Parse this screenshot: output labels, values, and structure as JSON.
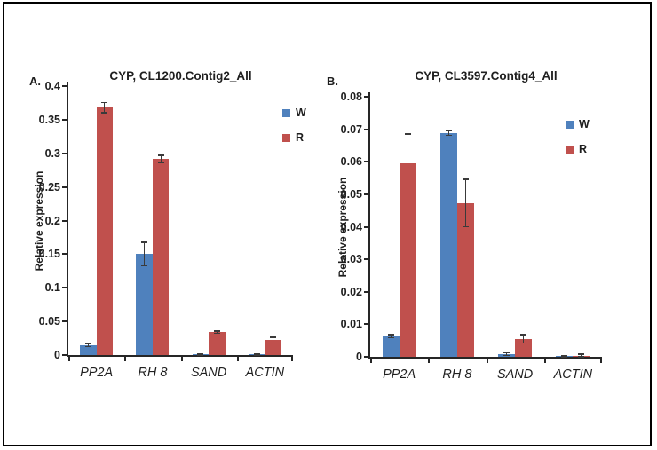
{
  "figure": {
    "background": "#ffffff",
    "border_color": "#000000"
  },
  "chart_data": [
    {
      "type": "bar",
      "panel_label": "A.",
      "title": "CYP, CL1200.Contig2_All",
      "ylabel": "Relative expression",
      "xlabel": "",
      "categories": [
        "PP2A",
        "RH 8",
        "SAND",
        "ACTIN"
      ],
      "series": [
        {
          "name": "W",
          "color": "#4f81bd",
          "values": [
            0.015,
            0.15,
            0.001,
            0.001
          ],
          "errors": [
            0.002,
            0.017,
            0.0008,
            0.0005
          ]
        },
        {
          "name": "R",
          "color": "#c0504d",
          "values": [
            0.368,
            0.292,
            0.034,
            0.022
          ],
          "errors": [
            0.007,
            0.005,
            0.0012,
            0.004
          ]
        }
      ],
      "ylim": [
        0,
        0.4
      ],
      "yticks": [
        "0",
        "0.05",
        "0.1",
        "0.15",
        "0.2",
        "0.25",
        "0.3",
        "0.35",
        "0.4"
      ],
      "legend_position": "right",
      "grid": false
    },
    {
      "type": "bar",
      "panel_label": "B.",
      "title": "CYP, CL3597.Contig4_All",
      "ylabel": "Relative expression",
      "xlabel": "",
      "categories": [
        "PP2A",
        "RH 8",
        "SAND",
        "ACTIN"
      ],
      "series": [
        {
          "name": "W",
          "color": "#4f81bd",
          "values": [
            0.0063,
            0.0688,
            0.0008,
            0.0002
          ],
          "errors": [
            0.0004,
            0.0006,
            0.0003,
            0.0001
          ]
        },
        {
          "name": "R",
          "color": "#c0504d",
          "values": [
            0.0595,
            0.0473,
            0.0055,
            0.0004
          ],
          "errors": [
            0.009,
            0.0072,
            0.0012,
            0.0003
          ]
        }
      ],
      "ylim": [
        0,
        0.08
      ],
      "yticks": [
        "0",
        "0.01",
        "0.02",
        "0.03",
        "0.04",
        "0.05",
        "0.06",
        "0.07",
        "0.08"
      ],
      "legend_position": "right",
      "grid": false
    }
  ]
}
